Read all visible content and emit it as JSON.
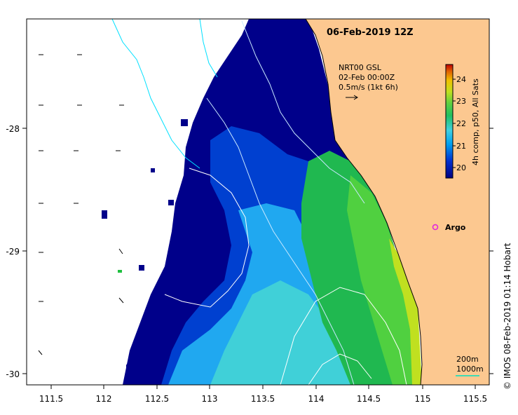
{
  "title": "06-Feb-2019 12Z",
  "radar": {
    "line1": "NRT00 GSL",
    "line2": "02-Feb 00:00Z",
    "line3": "0.5m/s (1kt 6h)"
  },
  "colorbar": {
    "label": "4h comp, p50, All Sats",
    "ticks": [
      "20",
      "21",
      "22",
      "23",
      "24"
    ],
    "colors": [
      "#000080",
      "#0030d0",
      "#00a0f0",
      "#40d0e0",
      "#20c060",
      "#60d040",
      "#c0e020",
      "#f0c000",
      "#e06000",
      "#c00000"
    ]
  },
  "argo": {
    "label": "Argo",
    "color": "#e020e0"
  },
  "scale": {
    "depth1": "200m",
    "depth2": "1000m"
  },
  "credit": "© IMOS 08-Feb-2019 01:14 Hobart",
  "axes": {
    "x_ticks": [
      "111.5",
      "112",
      "112.5",
      "113",
      "113.5",
      "114",
      "114.5",
      "115",
      "115.5"
    ],
    "y_ticks": [
      "-28",
      "-29",
      "-30"
    ]
  },
  "land_color": "#fcc890"
}
